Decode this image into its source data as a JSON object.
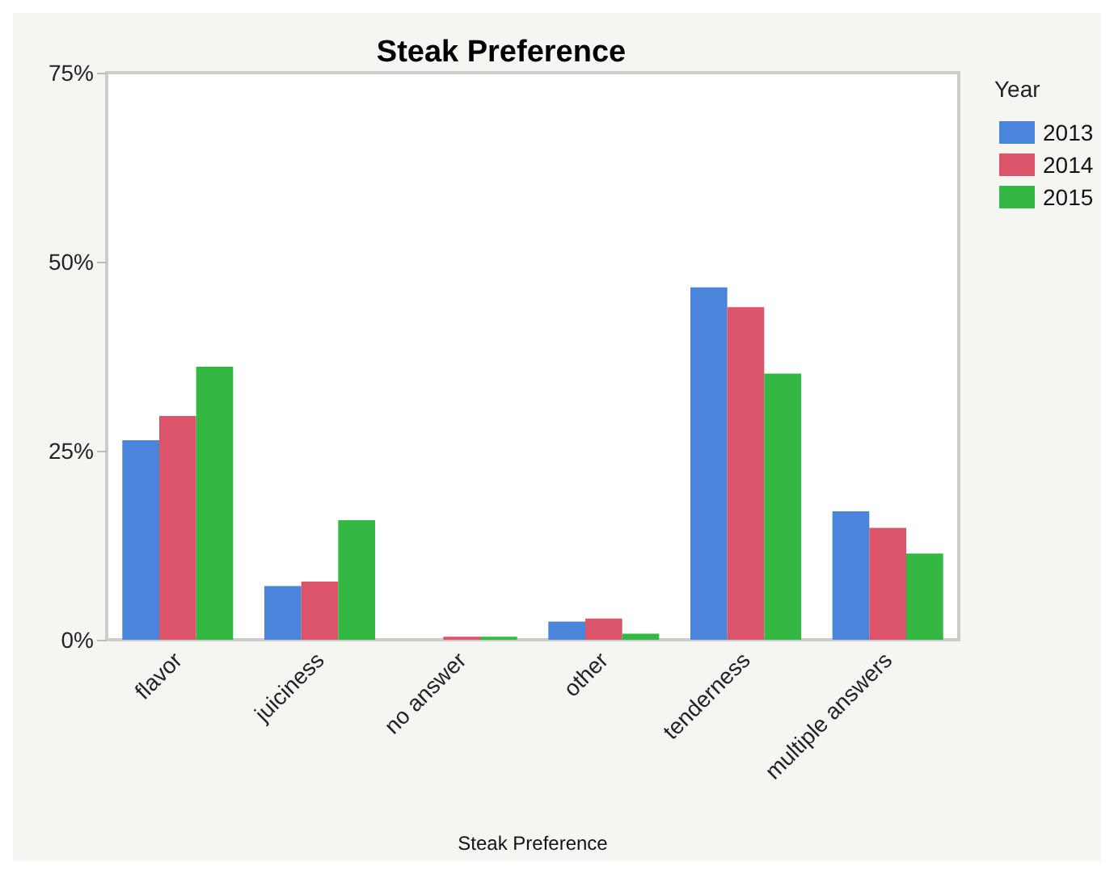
{
  "chart_data": {
    "type": "bar",
    "title": "Steak Preference",
    "xlabel": "Steak Preference",
    "legend_title": "Year",
    "categories": [
      "flavor",
      "juiciness",
      "no answer",
      "other",
      "tenderness",
      "multiple answers"
    ],
    "series": [
      {
        "name": "2013",
        "color": "#4a84db",
        "values": [
          26.4,
          7.1,
          0,
          2.4,
          46.6,
          17.0
        ]
      },
      {
        "name": "2014",
        "color": "#db5469",
        "values": [
          29.6,
          7.7,
          0.4,
          2.8,
          44.0,
          14.8
        ]
      },
      {
        "name": "2015",
        "color": "#33b843",
        "values": [
          36.1,
          15.8,
          0.4,
          0.8,
          35.2,
          11.4
        ]
      }
    ],
    "ylim": [
      0,
      75
    ],
    "yticks": [
      {
        "value": 0,
        "label": "0%"
      },
      {
        "value": 25,
        "label": "25%"
      },
      {
        "value": 50,
        "label": "50%"
      },
      {
        "value": 75,
        "label": "75%"
      }
    ],
    "grid": false,
    "legend": "top right"
  }
}
